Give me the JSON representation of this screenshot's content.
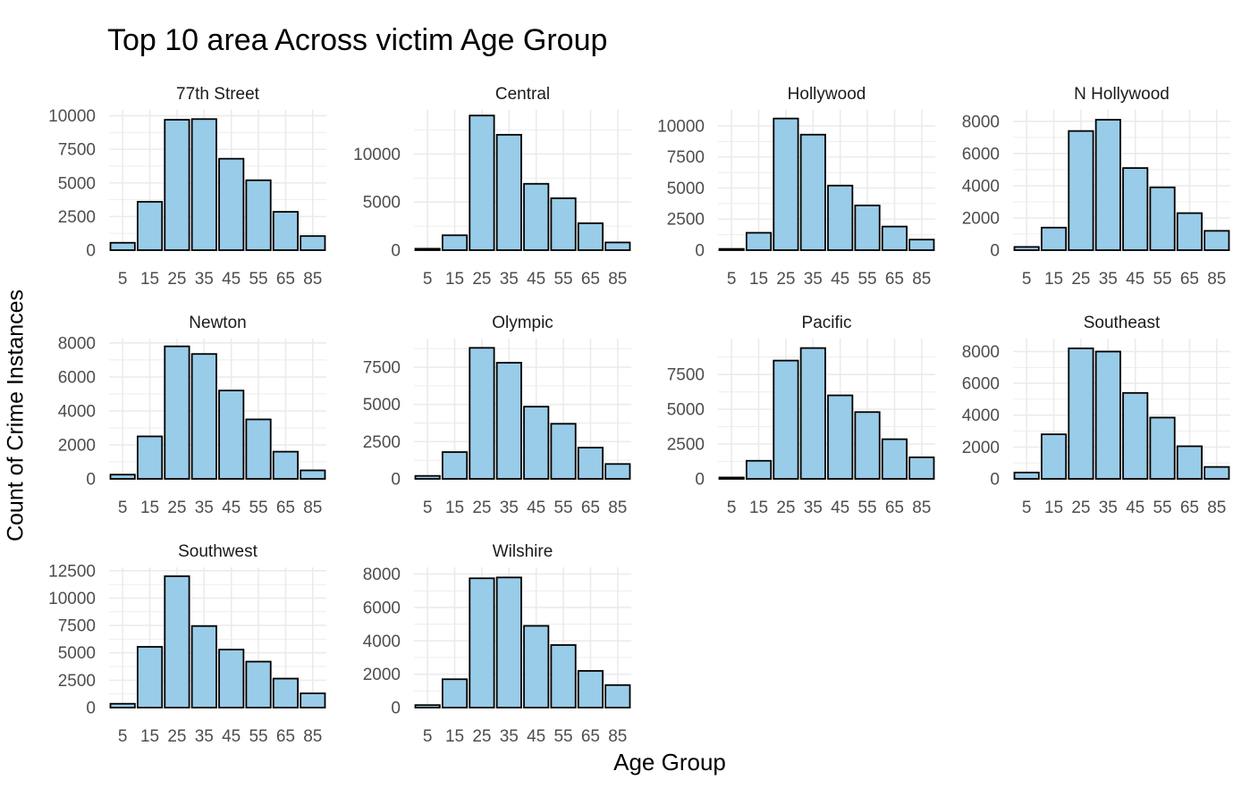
{
  "title": "Top 10 area Across victim Age Group",
  "xlabel": "Age Group",
  "ylabel": "Count of Crime Instances",
  "colors": {
    "bar_fill": "#99CCE8",
    "bar_stroke": "#000000",
    "grid": "#ebebeb",
    "tick_text": "#4d4d4d"
  },
  "chart_data": {
    "type": "bar",
    "layout": "facet-grid",
    "categories": [
      5,
      15,
      25,
      35,
      45,
      55,
      65,
      85
    ],
    "tick_labels": [
      "5",
      "15",
      "25",
      "35",
      "45",
      "55",
      "65",
      "85"
    ],
    "grid": true,
    "facets": [
      {
        "name": "77th Street",
        "values": [
          550,
          3600,
          9700,
          9750,
          6800,
          5200,
          2850,
          1050
        ],
        "ylim": [
          0,
          10300
        ],
        "yticks": [
          0,
          2500,
          5000,
          7500,
          10000
        ],
        "ytick_labels": [
          "0",
          "2500",
          "5000",
          "7500",
          "10000"
        ]
      },
      {
        "name": "Central",
        "values": [
          150,
          1550,
          14000,
          12000,
          6900,
          5400,
          2800,
          800
        ],
        "ylim": [
          0,
          14400
        ],
        "yticks": [
          0,
          5000,
          10000
        ],
        "ytick_labels": [
          "0",
          "5000",
          "10000"
        ]
      },
      {
        "name": "Hollywood",
        "values": [
          100,
          1400,
          10600,
          9300,
          5200,
          3600,
          1900,
          850
        ],
        "ylim": [
          0,
          11150
        ],
        "yticks": [
          0,
          2500,
          5000,
          7500,
          10000
        ],
        "ytick_labels": [
          "0",
          "2500",
          "5000",
          "7500",
          "10000"
        ]
      },
      {
        "name": "N Hollywood",
        "values": [
          200,
          1400,
          7400,
          8100,
          5100,
          3900,
          2300,
          1200
        ],
        "ylim": [
          0,
          8600
        ],
        "yticks": [
          0,
          2000,
          4000,
          6000,
          8000
        ],
        "ytick_labels": [
          "0",
          "2000",
          "4000",
          "6000",
          "8000"
        ]
      },
      {
        "name": "Newton",
        "values": [
          250,
          2500,
          7800,
          7350,
          5200,
          3500,
          1600,
          500
        ],
        "ylim": [
          0,
          8150
        ],
        "yticks": [
          0,
          2000,
          4000,
          6000,
          8000
        ],
        "ytick_labels": [
          "0",
          "2000",
          "4000",
          "6000",
          "8000"
        ]
      },
      {
        "name": "Olympic",
        "values": [
          200,
          1800,
          8800,
          7800,
          4850,
          3700,
          2100,
          1000
        ],
        "ylim": [
          0,
          9300
        ],
        "yticks": [
          0,
          2500,
          5000,
          7500
        ],
        "ytick_labels": [
          "0",
          "2500",
          "5000",
          "7500"
        ]
      },
      {
        "name": "Pacific",
        "values": [
          100,
          1300,
          8500,
          9400,
          6000,
          4800,
          2850,
          1550
        ],
        "ylim": [
          0,
          9950
        ],
        "yticks": [
          0,
          2500,
          5000,
          7500
        ],
        "ytick_labels": [
          "0",
          "2500",
          "5000",
          "7500"
        ]
      },
      {
        "name": "Southeast",
        "values": [
          400,
          2800,
          8200,
          8000,
          5400,
          3850,
          2050,
          750
        ],
        "ylim": [
          0,
          8700
        ],
        "yticks": [
          0,
          2000,
          4000,
          6000,
          8000
        ],
        "ytick_labels": [
          "0",
          "2000",
          "4000",
          "6000",
          "8000"
        ]
      },
      {
        "name": "Southwest",
        "values": [
          350,
          5550,
          12000,
          7450,
          5300,
          4200,
          2650,
          1300
        ],
        "ylim": [
          0,
          12650
        ],
        "yticks": [
          0,
          2500,
          5000,
          7500,
          10000,
          12500
        ],
        "ytick_labels": [
          "0",
          "2500",
          "5000",
          "7500",
          "10000",
          "12500"
        ]
      },
      {
        "name": "Wilshire",
        "values": [
          150,
          1700,
          7750,
          7800,
          4900,
          3750,
          2200,
          1350
        ],
        "ylim": [
          0,
          8300
        ],
        "yticks": [
          0,
          2000,
          4000,
          6000,
          8000
        ],
        "ytick_labels": [
          "0",
          "2000",
          "4000",
          "6000",
          "8000"
        ]
      }
    ]
  }
}
